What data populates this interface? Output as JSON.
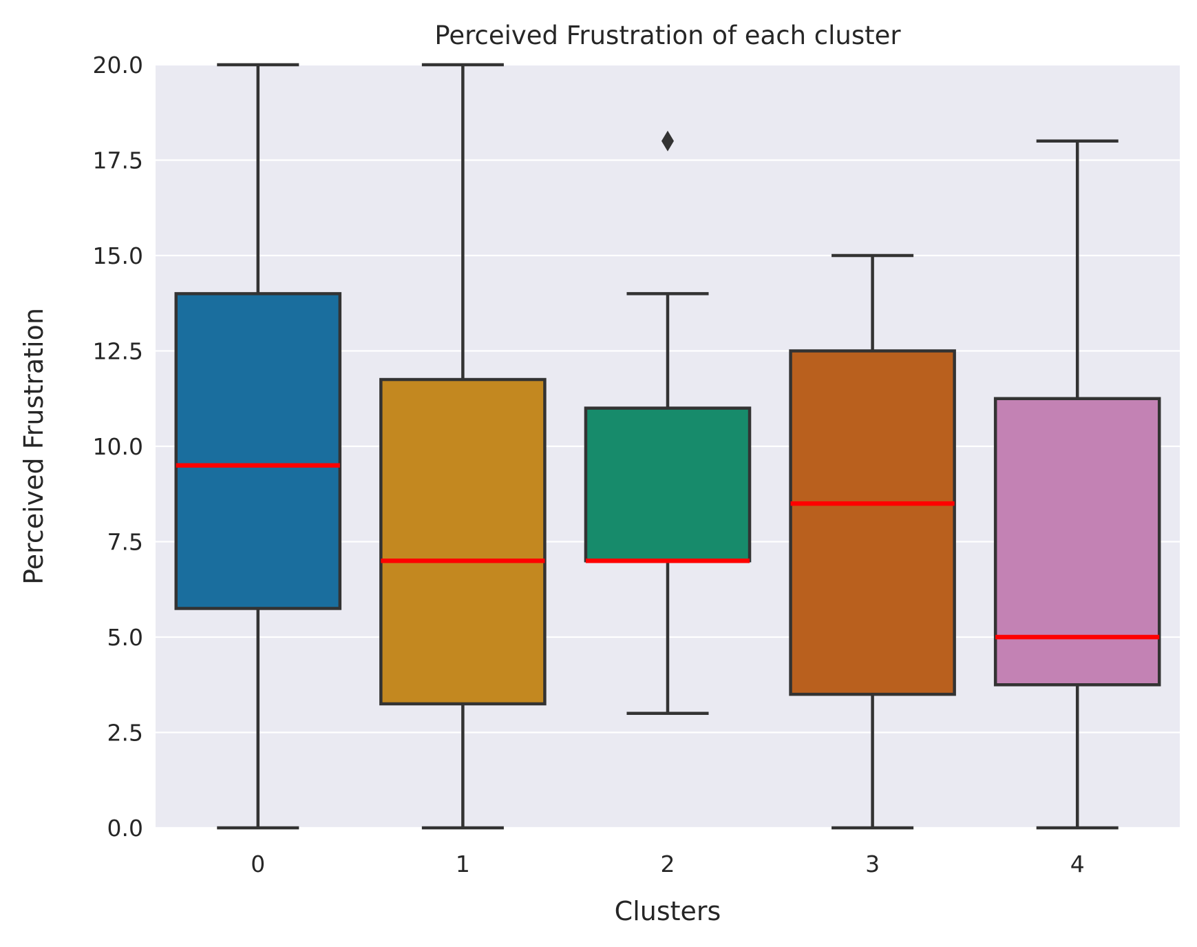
{
  "chart_data": {
    "type": "box",
    "title": "Perceived Frustration of each cluster",
    "xlabel": "Clusters",
    "ylabel": "Perceived Frustration",
    "ylim": [
      0,
      20
    ],
    "yticks": [
      0.0,
      2.5,
      5.0,
      7.5,
      10.0,
      12.5,
      15.0,
      17.5,
      20.0
    ],
    "ytick_labels": [
      "0.0",
      "2.5",
      "5.0",
      "7.5",
      "10.0",
      "12.5",
      "15.0",
      "17.5",
      "20.0"
    ],
    "categories": [
      "0",
      "1",
      "2",
      "3",
      "4"
    ],
    "grid": true,
    "median_color": "#ff0000",
    "background_color": "#eaeaf2",
    "boxes": [
      {
        "category": "0",
        "whisker_low": 0,
        "q1": 5.75,
        "median": 9.5,
        "q3": 14.0,
        "whisker_high": 20,
        "outliers": [],
        "color": "#1a6e9e"
      },
      {
        "category": "1",
        "whisker_low": 0,
        "q1": 3.25,
        "median": 7.0,
        "q3": 11.75,
        "whisker_high": 20,
        "outliers": [],
        "color": "#c38820"
      },
      {
        "category": "2",
        "whisker_low": 3,
        "q1": 7.0,
        "median": 7.0,
        "q3": 11.0,
        "whisker_high": 14,
        "outliers": [
          18
        ],
        "color": "#178b6b"
      },
      {
        "category": "3",
        "whisker_low": 0,
        "q1": 3.5,
        "median": 8.5,
        "q3": 12.5,
        "whisker_high": 15,
        "outliers": [],
        "color": "#b9601e"
      },
      {
        "category": "4",
        "whisker_low": 0,
        "q1": 3.75,
        "median": 5.0,
        "q3": 11.25,
        "whisker_high": 18,
        "outliers": [],
        "color": "#c382b4"
      }
    ]
  }
}
